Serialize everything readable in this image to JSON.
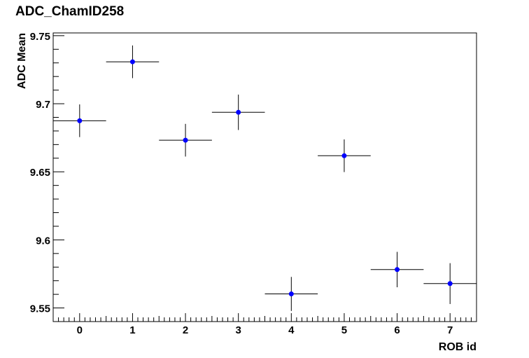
{
  "chart_data": {
    "type": "scatter",
    "title": "ADC_ChamID258",
    "xlabel": "ROB id",
    "ylabel": "ADC Mean",
    "xlim": [
      -0.5,
      7.5
    ],
    "ylim": [
      9.54,
      9.752
    ],
    "x_ticks": [
      0,
      1,
      2,
      3,
      4,
      5,
      6,
      7
    ],
    "y_ticks": [
      9.55,
      9.6,
      9.65,
      9.7,
      9.75
    ],
    "y_tick_labels": [
      "9.55",
      "9.6",
      "9.65",
      "9.7",
      "9.75"
    ],
    "grid": false,
    "legend": "none",
    "marker_color": "#0000ff",
    "points": [
      {
        "x": 0,
        "y": 9.6875,
        "xerr": 0.5,
        "yerr": 0.012
      },
      {
        "x": 1,
        "y": 9.7308,
        "xerr": 0.5,
        "yerr": 0.012
      },
      {
        "x": 2,
        "y": 9.6732,
        "xerr": 0.5,
        "yerr": 0.012
      },
      {
        "x": 3,
        "y": 9.6937,
        "xerr": 0.5,
        "yerr": 0.013
      },
      {
        "x": 4,
        "y": 9.5603,
        "xerr": 0.5,
        "yerr": 0.0125
      },
      {
        "x": 5,
        "y": 9.6618,
        "xerr": 0.5,
        "yerr": 0.012
      },
      {
        "x": 6,
        "y": 9.5782,
        "xerr": 0.5,
        "yerr": 0.013
      },
      {
        "x": 7,
        "y": 9.5679,
        "xerr": 0.5,
        "yerr": 0.015
      }
    ]
  }
}
